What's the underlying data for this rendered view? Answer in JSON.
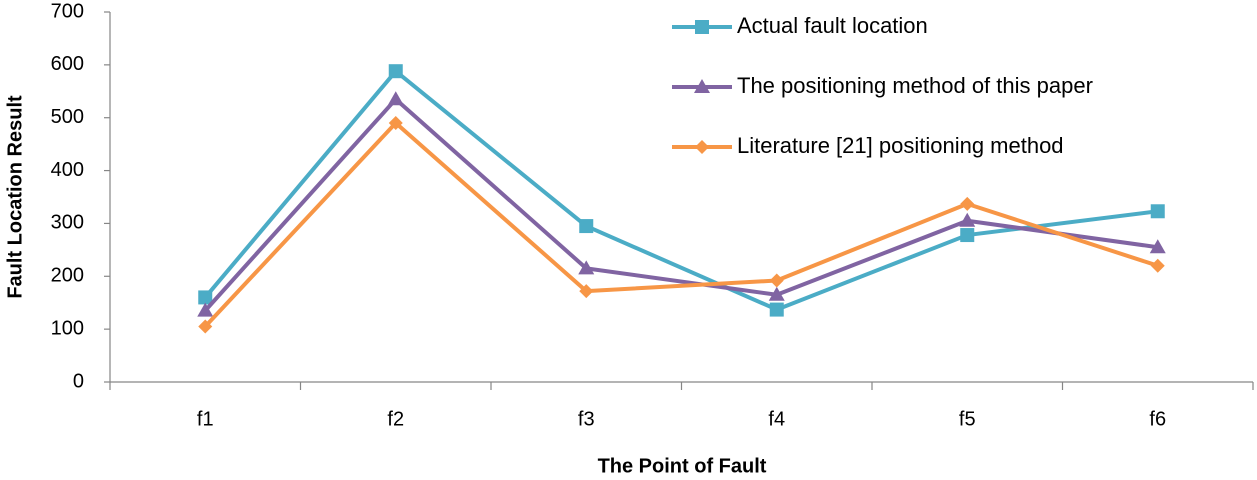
{
  "chart_data": {
    "type": "line",
    "x_label": "The Point of  Fault",
    "y_label": "Fault  Location Result",
    "categories": [
      "f1",
      "f2",
      "f3",
      "f4",
      "f5",
      "f6"
    ],
    "series": [
      {
        "name": "Actual fault location",
        "color": "#4bacc6",
        "marker": "square",
        "values": [
          160,
          588,
          295,
          137,
          278,
          323
        ]
      },
      {
        "name": "The positioning method of this paper",
        "color": "#8064a2",
        "marker": "triangle",
        "values": [
          135,
          535,
          215,
          165,
          305,
          255
        ]
      },
      {
        "name": "Literature [21] positioning method",
        "color": "#f79646",
        "marker": "diamond",
        "values": [
          105,
          490,
          172,
          192,
          337,
          220
        ]
      }
    ],
    "ylim": [
      0,
      700
    ],
    "yticks": [
      0,
      100,
      200,
      300,
      400,
      500,
      600,
      700
    ],
    "grid": false,
    "legend": "top-right"
  }
}
